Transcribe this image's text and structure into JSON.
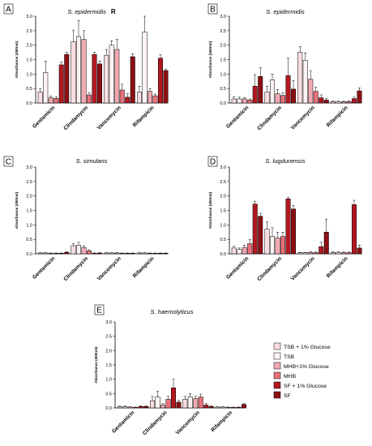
{
  "colors": [
    "#f9dde1",
    "#fdf3f4",
    "#f2a9b2",
    "#e7727c",
    "#b11820",
    "#8c0f14"
  ],
  "legend": {
    "entries": [
      "TSB + 1% Glucose",
      "TSB",
      "MHB+1% Glucose",
      "MHB",
      "SF + 1% Glucose",
      "SF"
    ]
  },
  "chart_data": [
    {
      "type": "bar",
      "panel": "A",
      "title": "S. epidermidis",
      "title_extra": "R",
      "ylabel": "Absorbance (450nm)",
      "ylim": [
        0,
        3.0
      ],
      "yticks": [
        "0.0",
        "0.5",
        "1.0",
        "1.5",
        "2.0",
        "2.5",
        "3.0"
      ],
      "categories": [
        "Gentamicin",
        "Clindamycin",
        "Vancomycin",
        "Rifampicin"
      ],
      "series": [
        {
          "name": "TSB + 1% Glucose",
          "values": [
            0.38,
            2.12,
            1.65,
            0.38
          ],
          "errors": [
            0.12,
            0.4,
            0.2,
            0.2
          ]
        },
        {
          "name": "TSB",
          "values": [
            1.05,
            2.3,
            2.0,
            2.45
          ],
          "errors": [
            0.4,
            0.55,
            0.15,
            0.55
          ]
        },
        {
          "name": "MHB+1% Glucose",
          "values": [
            0.18,
            2.2,
            1.85,
            0.4
          ],
          "errors": [
            0.06,
            0.3,
            0.35,
            0.1
          ]
        },
        {
          "name": "MHB",
          "values": [
            0.16,
            0.28,
            0.45,
            0.25
          ],
          "errors": [
            0.06,
            0.08,
            0.2,
            0.06
          ]
        },
        {
          "name": "SF + 1% Glucose",
          "values": [
            1.32,
            1.68,
            0.2,
            1.55
          ],
          "errors": [
            0.1,
            0.08,
            0.12,
            0.12
          ]
        },
        {
          "name": "SF",
          "values": [
            1.68,
            1.35,
            1.6,
            1.12
          ],
          "errors": [
            0.08,
            0.1,
            0.1,
            0.05
          ]
        }
      ]
    },
    {
      "type": "bar",
      "panel": "B",
      "title": "S. epidermidis",
      "ylabel": "Absorbance (450nm)",
      "ylim": [
        0,
        3.0
      ],
      "yticks": [
        "0.0",
        "0.5",
        "1.0",
        "1.5",
        "2.0",
        "2.5",
        "3.0"
      ],
      "categories": [
        "Gentamicin",
        "Clindamycin",
        "Vancomycin",
        "Rifampicin"
      ],
      "series": [
        {
          "name": "TSB + 1% Glucose",
          "values": [
            0.14,
            0.38,
            1.75,
            0.05
          ],
          "errors": [
            0.08,
            0.2,
            0.2,
            0.02
          ]
        },
        {
          "name": "TSB",
          "values": [
            0.14,
            0.8,
            1.48,
            0.04
          ],
          "errors": [
            0.06,
            0.2,
            0.25,
            0.02
          ]
        },
        {
          "name": "MHB+1% Glucose",
          "values": [
            0.14,
            0.32,
            0.82,
            0.04
          ],
          "errors": [
            0.05,
            0.15,
            0.3,
            0.02
          ]
        },
        {
          "name": "MHB",
          "values": [
            0.1,
            0.26,
            0.4,
            0.05
          ],
          "errors": [
            0.04,
            0.1,
            0.15,
            0.02
          ]
        },
        {
          "name": "SF + 1% Glucose",
          "values": [
            0.58,
            0.95,
            0.18,
            0.15
          ],
          "errors": [
            0.4,
            0.6,
            0.1,
            0.05
          ]
        },
        {
          "name": "SF",
          "values": [
            0.92,
            0.48,
            0.1,
            0.42
          ],
          "errors": [
            0.3,
            0.3,
            0.05,
            0.1
          ]
        }
      ]
    },
    {
      "type": "bar",
      "panel": "C",
      "title": "S. simulans",
      "ylabel": "Absorbance (450nm)",
      "ylim": [
        0,
        3.0
      ],
      "yticks": [
        "0.0",
        "0.5",
        "1.0",
        "1.5",
        "2.0",
        "2.5",
        "3.0"
      ],
      "categories": [
        "Gentamicin",
        "Clindamycin",
        "Vancomycin",
        "Rifampicin"
      ],
      "series": [
        {
          "name": "TSB + 1% Glucose",
          "values": [
            0.03,
            0.28,
            0.03,
            0.03
          ],
          "errors": [
            0.01,
            0.08,
            0.01,
            0.01
          ]
        },
        {
          "name": "TSB",
          "values": [
            0.03,
            0.3,
            0.03,
            0.03
          ],
          "errors": [
            0.01,
            0.1,
            0.01,
            0.01
          ]
        },
        {
          "name": "MHB+1% Glucose",
          "values": [
            0.02,
            0.22,
            0.03,
            0.02
          ],
          "errors": [
            0.01,
            0.06,
            0.01,
            0.01
          ]
        },
        {
          "name": "MHB",
          "values": [
            0.02,
            0.1,
            0.02,
            0.02
          ],
          "errors": [
            0.01,
            0.04,
            0.01,
            0.01
          ]
        },
        {
          "name": "SF + 1% Glucose",
          "values": [
            0.02,
            0.02,
            0.02,
            0.02
          ],
          "errors": [
            0.01,
            0.01,
            0.01,
            0.01
          ]
        },
        {
          "name": "SF",
          "values": [
            0.05,
            0.03,
            0.02,
            0.02
          ],
          "errors": [
            0.02,
            0.01,
            0.01,
            0.01
          ]
        }
      ]
    },
    {
      "type": "bar",
      "panel": "D",
      "title": "S. lugdunensis",
      "ylabel": "Absorbance (450nm)",
      "ylim": [
        0,
        3.0
      ],
      "yticks": [
        "0.0",
        "0.5",
        "1.0",
        "1.5",
        "2.0",
        "2.5",
        "3.0"
      ],
      "categories": [
        "Gentamicin",
        "Clindamycin",
        "Vancomycin",
        "Rifampicin"
      ],
      "series": [
        {
          "name": "TSB + 1% Glucose",
          "values": [
            0.2,
            0.85,
            0.04,
            0.05
          ],
          "errors": [
            0.06,
            0.25,
            0.01,
            0.02
          ]
        },
        {
          "name": "TSB",
          "values": [
            0.15,
            0.6,
            0.04,
            0.05
          ],
          "errors": [
            0.05,
            0.3,
            0.01,
            0.02
          ]
        },
        {
          "name": "MHB+1% Glucose",
          "values": [
            0.22,
            0.55,
            0.05,
            0.04
          ],
          "errors": [
            0.08,
            0.2,
            0.02,
            0.02
          ]
        },
        {
          "name": "MHB",
          "values": [
            0.35,
            0.6,
            0.04,
            0.04
          ],
          "errors": [
            0.15,
            0.15,
            0.02,
            0.02
          ]
        },
        {
          "name": "SF + 1% Glucose",
          "values": [
            1.72,
            1.9,
            0.25,
            1.7
          ],
          "errors": [
            0.1,
            0.05,
            0.15,
            0.15
          ]
        },
        {
          "name": "SF",
          "values": [
            1.3,
            1.55,
            0.75,
            0.2
          ],
          "errors": [
            0.1,
            0.12,
            0.45,
            0.1
          ]
        }
      ]
    },
    {
      "type": "bar",
      "panel": "E",
      "title": "S. haemolyticus",
      "ylabel": "Absorbance (450nm)",
      "ylim": [
        0,
        3.0
      ],
      "yticks": [
        "0.0",
        "0.5",
        "1.0",
        "1.5",
        "2.0",
        "2.5",
        "3.0"
      ],
      "categories": [
        "Gentamicin",
        "Clindamycin",
        "Vancomycin",
        "Rifampicin"
      ],
      "series": [
        {
          "name": "TSB + 1% Glucose",
          "values": [
            0.04,
            0.25,
            0.3,
            0.03
          ],
          "errors": [
            0.02,
            0.15,
            0.1,
            0.01
          ]
        },
        {
          "name": "TSB",
          "values": [
            0.04,
            0.38,
            0.38,
            0.03
          ],
          "errors": [
            0.02,
            0.2,
            0.12,
            0.01
          ]
        },
        {
          "name": "MHB+1% Glucose",
          "values": [
            0.03,
            0.1,
            0.32,
            0.02
          ],
          "errors": [
            0.01,
            0.05,
            0.08,
            0.01
          ]
        },
        {
          "name": "MHB",
          "values": [
            0.02,
            0.3,
            0.38,
            0.02
          ],
          "errors": [
            0.01,
            0.1,
            0.1,
            0.01
          ]
        },
        {
          "name": "SF + 1% Glucose",
          "values": [
            0.05,
            0.7,
            0.1,
            0.02
          ],
          "errors": [
            0.02,
            0.3,
            0.05,
            0.01
          ]
        },
        {
          "name": "SF",
          "values": [
            0.05,
            0.2,
            0.05,
            0.12
          ],
          "errors": [
            0.02,
            0.06,
            0.02,
            0.03
          ]
        }
      ]
    }
  ]
}
